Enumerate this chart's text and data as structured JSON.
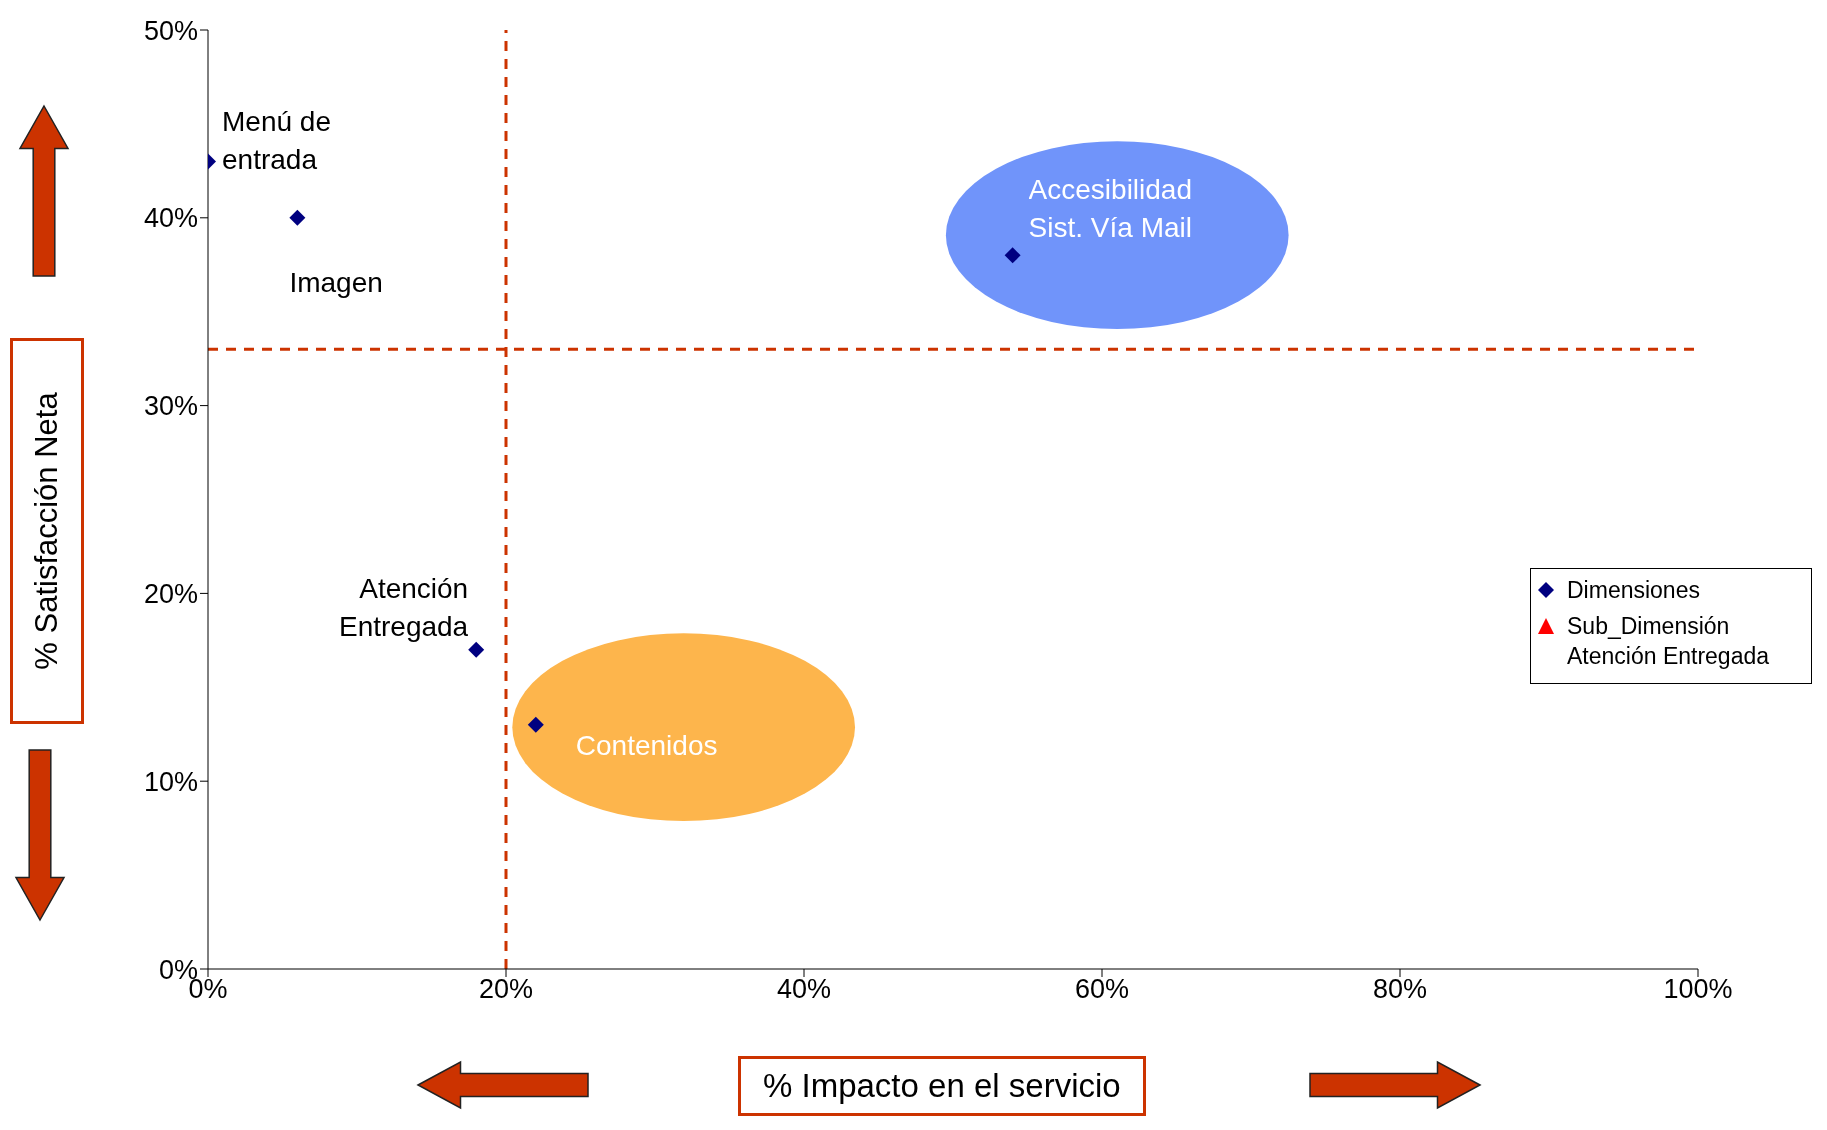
{
  "chart_data": {
    "type": "scatter",
    "xlabel": "% Impacto en el servicio",
    "ylabel": "% Satisfacción Neta",
    "series": [
      {
        "name": "Dimensiones",
        "color": "#000080",
        "marker": "diamond",
        "x": [
          0,
          6,
          54,
          18,
          22
        ],
        "values": [
          43,
          40,
          38,
          17,
          13
        ]
      },
      {
        "name": "Sub_Dimensión Atención Entregada",
        "color": "#ff0000",
        "marker": "triangle"
      }
    ],
    "xlim": [
      0,
      100
    ],
    "xticks": [
      {
        "value": 0,
        "label": "0%"
      },
      {
        "value": 20,
        "label": "20%"
      },
      {
        "value": 40,
        "label": "40%"
      },
      {
        "value": 60,
        "label": "60%"
      },
      {
        "value": 80,
        "label": "80%"
      },
      {
        "value": 100,
        "label": "100%"
      }
    ],
    "ylim": [
      0,
      50
    ],
    "yticks": [
      {
        "value": 0,
        "label": "0%"
      },
      {
        "value": 10,
        "label": "10%"
      },
      {
        "value": 20,
        "label": "20%"
      },
      {
        "value": 30,
        "label": "30%"
      },
      {
        "value": 40,
        "label": "40%"
      },
      {
        "value": 50,
        "label": "50%"
      }
    ],
    "ref_lines": [
      {
        "axis": "x",
        "value": 20,
        "color": "#cc3300",
        "line_style": "dashed"
      },
      {
        "axis": "y",
        "value": 33,
        "color": "#cc3300",
        "line_style": "dashed"
      }
    ],
    "annotations": [
      {
        "text": "Menú de entrada",
        "x": 0,
        "y": 43
      },
      {
        "text": "Imagen",
        "x": 6,
        "y": 40
      },
      {
        "text": "Accesibilidad Sist. Vía Mail",
        "x": 54,
        "y": 38
      },
      {
        "text": "Atención Entregada",
        "x": 18,
        "y": 17
      },
      {
        "text": "Contenidos",
        "x": 22,
        "y": 13
      }
    ],
    "legend": "right",
    "grid": false
  }
}
